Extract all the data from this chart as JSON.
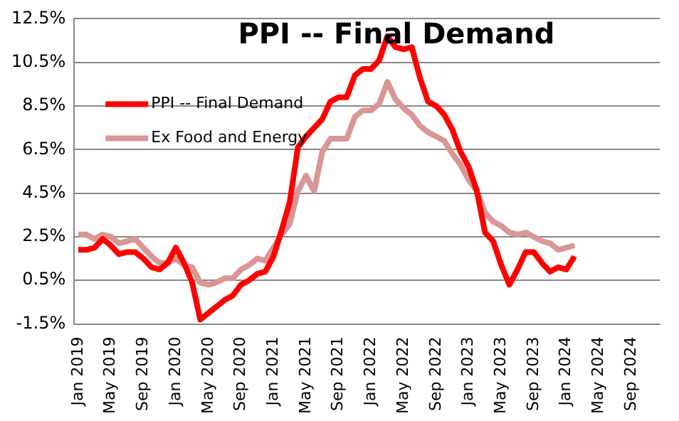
{
  "chart_data": {
    "type": "line",
    "title": "PPI -- Final Demand",
    "categories": [
      "Jan 2019",
      null,
      null,
      null,
      "May 2019",
      null,
      null,
      null,
      "Sep 2019",
      null,
      null,
      null,
      "Jan 2020",
      null,
      null,
      null,
      "May 2020",
      null,
      null,
      null,
      "Sep 2020",
      null,
      null,
      null,
      "Jan 2021",
      null,
      null,
      null,
      "May 2021",
      null,
      null,
      null,
      "Sep 2021",
      null,
      null,
      null,
      "Jan 2022",
      null,
      null,
      null,
      "May 2022",
      null,
      null,
      null,
      "Sep 2022",
      null,
      null,
      null,
      "Jan 2023",
      null,
      null,
      null,
      "May 2023",
      null,
      null,
      null,
      "Sep 2023",
      null,
      null,
      null,
      "Jan 2024",
      null,
      null,
      null,
      "May 2024",
      null,
      null,
      null,
      "Sep 2024",
      null,
      null,
      null
    ],
    "series": [
      {
        "name": "PPI -- Final Demand",
        "color": "#ff0000",
        "values": [
          1.9,
          1.9,
          2.0,
          2.4,
          2.1,
          1.7,
          1.8,
          1.8,
          1.5,
          1.1,
          1.0,
          1.3,
          2.0,
          1.3,
          0.4,
          -1.3,
          -1.0,
          -0.7,
          -0.4,
          -0.2,
          0.3,
          0.5,
          0.8,
          0.9,
          1.6,
          2.8,
          4.1,
          6.6,
          7.1,
          7.5,
          7.9,
          8.7,
          8.9,
          8.9,
          9.9,
          10.2,
          10.2,
          10.6,
          11.7,
          11.2,
          11.1,
          11.2,
          9.8,
          8.7,
          8.5,
          8.1,
          7.4,
          6.4,
          5.7,
          4.6,
          2.7,
          2.3,
          1.2,
          0.3,
          1.0,
          1.8,
          1.8,
          1.3,
          0.9,
          1.1,
          1.0,
          1.6,
          null,
          null,
          null,
          null,
          null,
          null,
          null,
          null,
          null,
          null
        ]
      },
      {
        "name": "Ex Food and Energy",
        "color": "#d99694",
        "values": [
          2.6,
          2.6,
          2.4,
          2.6,
          2.5,
          2.2,
          2.3,
          2.4,
          2.0,
          1.6,
          1.3,
          1.3,
          1.5,
          1.2,
          1.1,
          0.4,
          0.3,
          0.4,
          0.6,
          0.6,
          1.0,
          1.2,
          1.5,
          1.4,
          2.0,
          2.6,
          3.1,
          4.6,
          5.3,
          4.6,
          6.4,
          7.0,
          7.0,
          7.0,
          8.0,
          8.3,
          8.3,
          8.6,
          9.6,
          8.8,
          8.4,
          8.1,
          7.6,
          7.3,
          7.1,
          6.9,
          6.3,
          5.8,
          5.1,
          4.6,
          3.6,
          3.2,
          3.0,
          2.7,
          2.6,
          2.7,
          2.5,
          2.3,
          2.2,
          1.9,
          2.0,
          2.1,
          null,
          null,
          null,
          null,
          null,
          null,
          null,
          null,
          null,
          null
        ]
      }
    ],
    "ylim": [
      -1.5,
      12.5
    ],
    "yticks": [
      {
        "value": -1.5,
        "label": "-1.5%"
      },
      {
        "value": 0.5,
        "label": "0.5%"
      },
      {
        "value": 2.5,
        "label": "2.5%"
      },
      {
        "value": 4.5,
        "label": "4.5%"
      },
      {
        "value": 6.5,
        "label": "6.5%"
      },
      {
        "value": 8.5,
        "label": "8.5%"
      },
      {
        "value": 10.5,
        "label": "10.5%"
      },
      {
        "value": 12.5,
        "label": "12.5%"
      }
    ],
    "grid": "y",
    "legend": "top left",
    "marker": "none",
    "line_style": "solid"
  }
}
